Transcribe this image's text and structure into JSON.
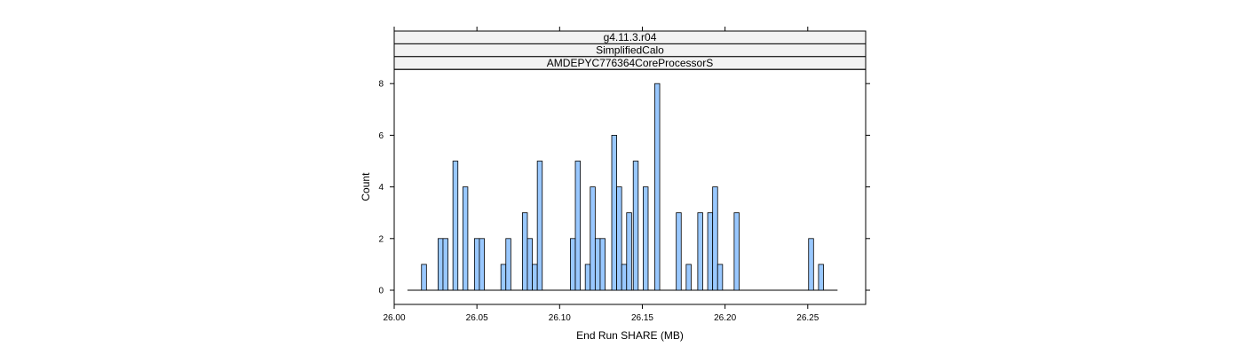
{
  "chart_data": {
    "type": "bar",
    "strips": [
      "g4.11.3.r04",
      "SimplifiedCalo",
      "AMDEPYC776364CoreProcessorS"
    ],
    "xlabel": "End Run SHARE (MB)",
    "ylabel": "Count",
    "xlim": [
      26.0,
      26.285
    ],
    "ylim": [
      -0.55,
      8.55
    ],
    "x_ticks": [
      26.0,
      26.05,
      26.1,
      26.15,
      26.2,
      26.25
    ],
    "x_tick_labels": [
      "26.00",
      "26.05",
      "26.10",
      "26.15",
      "26.20",
      "26.25"
    ],
    "y_ticks": [
      0,
      2,
      4,
      6,
      8
    ],
    "y_tick_labels": [
      "0",
      "2",
      "4",
      "6",
      "8"
    ],
    "baseline_range": [
      26.008,
      26.268
    ],
    "bin_width": 0.003,
    "bins": [
      {
        "x": 26.018,
        "count": 1
      },
      {
        "x": 26.028,
        "count": 2
      },
      {
        "x": 26.031,
        "count": 2
      },
      {
        "x": 26.037,
        "count": 5
      },
      {
        "x": 26.043,
        "count": 4
      },
      {
        "x": 26.05,
        "count": 2
      },
      {
        "x": 26.053,
        "count": 2
      },
      {
        "x": 26.066,
        "count": 1
      },
      {
        "x": 26.069,
        "count": 2
      },
      {
        "x": 26.079,
        "count": 3
      },
      {
        "x": 26.082,
        "count": 2
      },
      {
        "x": 26.085,
        "count": 1
      },
      {
        "x": 26.088,
        "count": 5
      },
      {
        "x": 26.108,
        "count": 2
      },
      {
        "x": 26.111,
        "count": 5
      },
      {
        "x": 26.117,
        "count": 1
      },
      {
        "x": 26.12,
        "count": 4
      },
      {
        "x": 26.123,
        "count": 2
      },
      {
        "x": 26.126,
        "count": 2
      },
      {
        "x": 26.133,
        "count": 6
      },
      {
        "x": 26.136,
        "count": 4
      },
      {
        "x": 26.139,
        "count": 1
      },
      {
        "x": 26.142,
        "count": 3
      },
      {
        "x": 26.146,
        "count": 5
      },
      {
        "x": 26.152,
        "count": 4
      },
      {
        "x": 26.159,
        "count": 8
      },
      {
        "x": 26.172,
        "count": 3
      },
      {
        "x": 26.178,
        "count": 1
      },
      {
        "x": 26.185,
        "count": 3
      },
      {
        "x": 26.191,
        "count": 3
      },
      {
        "x": 26.194,
        "count": 4
      },
      {
        "x": 26.197,
        "count": 1
      },
      {
        "x": 26.207,
        "count": 3
      },
      {
        "x": 26.252,
        "count": 2
      },
      {
        "x": 26.258,
        "count": 1
      }
    ],
    "grid": false,
    "legend": "none"
  },
  "colors": {
    "bar_fill": "#99c8ff",
    "bar_stroke": "#000000",
    "strip_fill": "#f2f2f2",
    "frame": "#000000",
    "text": "#000000"
  }
}
